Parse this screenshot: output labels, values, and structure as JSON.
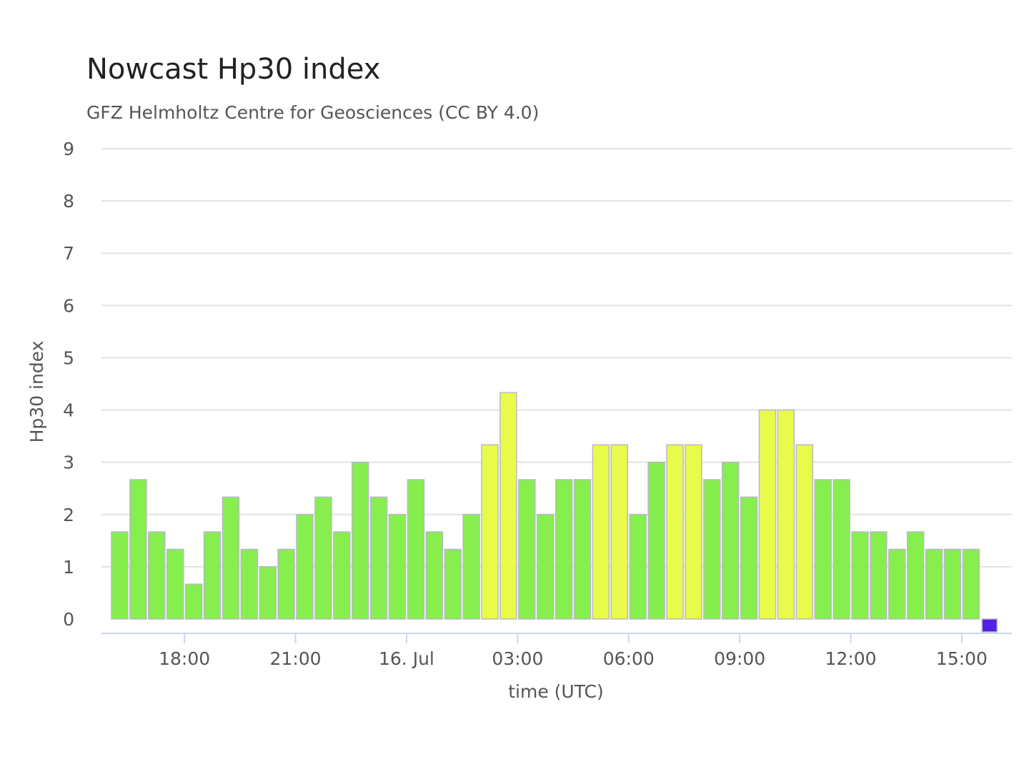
{
  "chart_data": {
    "type": "bar",
    "title": "Nowcast Hp30 index",
    "subtitle": "GFZ Helmholtz Centre for Geosciences (CC BY 4.0)",
    "xlabel": "time (UTC)",
    "ylabel": "Hp30 index",
    "ylim": [
      0,
      9
    ],
    "yticks": [
      "0",
      "1",
      "2",
      "3",
      "4",
      "5",
      "6",
      "7",
      "8",
      "9"
    ],
    "x_start": "15 Jul 16:00",
    "interval_minutes": 30,
    "xticks": [
      {
        "label": "18:00",
        "slot": 4
      },
      {
        "label": "21:00",
        "slot": 10
      },
      {
        "label": "16. Jul",
        "slot": 16
      },
      {
        "label": "03:00",
        "slot": 22
      },
      {
        "label": "06:00",
        "slot": 28
      },
      {
        "label": "09:00",
        "slot": 34
      },
      {
        "label": "12:00",
        "slot": 40
      },
      {
        "label": "15:00",
        "slot": 46
      }
    ],
    "categories": [
      "15 Jul 16:00",
      "15 Jul 16:30",
      "15 Jul 17:00",
      "15 Jul 17:30",
      "15 Jul 18:00",
      "15 Jul 18:30",
      "15 Jul 19:00",
      "15 Jul 19:30",
      "15 Jul 20:00",
      "15 Jul 20:30",
      "15 Jul 21:00",
      "15 Jul 21:30",
      "15 Jul 22:00",
      "15 Jul 22:30",
      "15 Jul 23:00",
      "15 Jul 23:30",
      "16 Jul 00:00",
      "16 Jul 00:30",
      "16 Jul 01:00",
      "16 Jul 01:30",
      "16 Jul 02:00",
      "16 Jul 02:30",
      "16 Jul 03:00",
      "16 Jul 03:30",
      "16 Jul 04:00",
      "16 Jul 04:30",
      "16 Jul 05:00",
      "16 Jul 05:30",
      "16 Jul 06:00",
      "16 Jul 06:30",
      "16 Jul 07:00",
      "16 Jul 07:30",
      "16 Jul 08:00",
      "16 Jul 08:30",
      "16 Jul 09:00",
      "16 Jul 09:30",
      "16 Jul 10:00",
      "16 Jul 10:30",
      "16 Jul 11:00",
      "16 Jul 11:30",
      "16 Jul 12:00",
      "16 Jul 12:30",
      "16 Jul 13:00",
      "16 Jul 13:30",
      "16 Jul 14:00",
      "16 Jul 14:30",
      "16 Jul 15:00",
      "16 Jul 15:30"
    ],
    "values": [
      1.667,
      2.667,
      1.667,
      1.333,
      0.667,
      1.667,
      2.333,
      1.333,
      1.0,
      1.333,
      2.0,
      2.333,
      1.667,
      3.0,
      2.333,
      2.0,
      2.667,
      1.667,
      1.333,
      2.0,
      3.333,
      4.333,
      2.667,
      2.0,
      2.667,
      2.667,
      3.333,
      3.333,
      2.0,
      3.0,
      3.333,
      3.333,
      2.667,
      3.0,
      2.333,
      4.0,
      4.0,
      3.333,
      2.667,
      2.667,
      1.667,
      1.667,
      1.333,
      1.667,
      1.333,
      1.333,
      1.333,
      0.1
    ],
    "colors": {
      "quiet": "#86ef4e",
      "active": "#e8fb4b",
      "nowcast": "#5221e6",
      "grid": "#e3e3e3",
      "axis": "#ccd6eb",
      "bar_stroke": "#b8b8c8"
    },
    "color_rule": "values >= 3.333 shown in active color; last slot is the current nowcast bar",
    "grid": true,
    "legend": "none"
  }
}
